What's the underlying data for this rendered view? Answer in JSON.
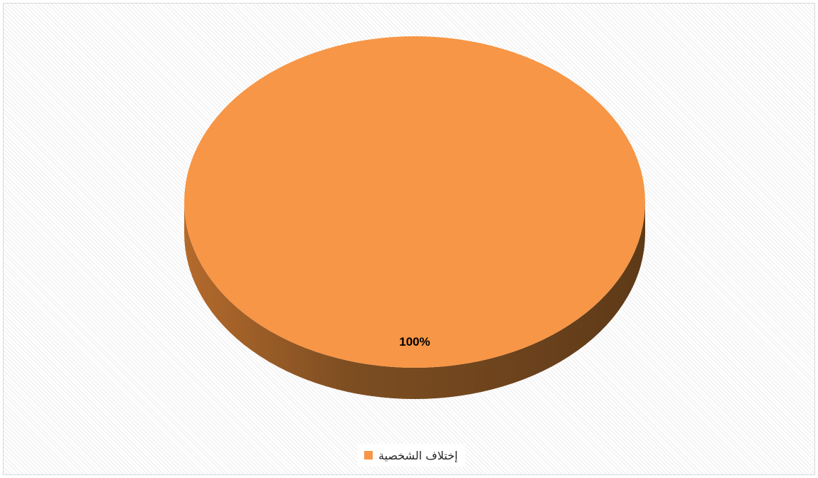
{
  "chart_data": {
    "type": "pie",
    "style": "3d",
    "categories": [
      "إختلاف الشخصية"
    ],
    "values": [
      100
    ],
    "data_labels": [
      "100%"
    ],
    "legend_position": "bottom",
    "colors": {
      "slice_top": "#f79646",
      "slice_side_light": "#b46a2c",
      "slice_side_dark": "#5e3a18"
    }
  }
}
